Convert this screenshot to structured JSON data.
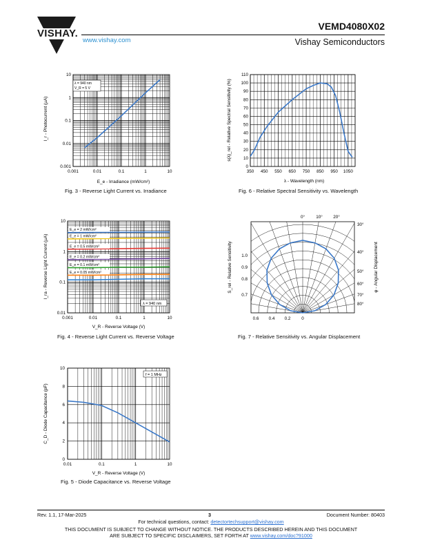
{
  "header": {
    "brand": "VISHAY.",
    "url": "www.vishay.com",
    "part_number": "VEMD4080X02",
    "company": "Vishay Semiconductors"
  },
  "figures": {
    "fig3": {
      "caption": "Fig. 3 - Reverse Light Current vs. Irradiance",
      "ylabel": "I_r - Photocurrent (µA)",
      "xlabel": "E_e - Irradiance (mW/cm²)",
      "yticks": [
        "10",
        "1",
        "0.1",
        "0.01",
        "0.001"
      ],
      "xticks": [
        "0.001",
        "0.01",
        "0.1",
        "1",
        "10"
      ],
      "annotation_lines": [
        "λ = 940 nm",
        "V_R = 5 V"
      ]
    },
    "fig4": {
      "caption": "Fig. 4 -  Reverse Light Current vs. Reverse Voltage",
      "ylabel": "I_ra - Reverse Light Current (µA)",
      "xlabel": "V_R - Reverse Voltage (V)",
      "yticks": [
        "10",
        "1",
        "0.1",
        "0.01"
      ],
      "xticks": [
        "0.001",
        "0.01",
        "0.1",
        "1",
        "10"
      ],
      "annotation": "λ = 940 nm"
    },
    "fig5": {
      "caption": "Fig. 5 - Diode Capacitance vs. Reverse Voltage",
      "ylabel": "C_D - Diode Capacitance (pF)",
      "xlabel": "V_R - Reverse Voltage (V)",
      "yticks": [
        "10",
        "8",
        "6",
        "4",
        "2",
        "0"
      ],
      "xticks": [
        "0.01",
        "0.1",
        "1",
        "10"
      ],
      "annotation": "f = 1 MHz"
    },
    "fig6": {
      "caption": "Fig. 6 - Relative Spectral Sensitivity vs. Wavelength",
      "ylabel": "s(λ)_rel - Relative Spectral Sensitivity (%)",
      "xlabel": "λ - Wavelength (nm)",
      "yticks": [
        "110",
        "100",
        "90",
        "80",
        "70",
        "60",
        "50",
        "40",
        "30",
        "20",
        "10",
        "0"
      ],
      "xticks": [
        "350",
        "450",
        "550",
        "650",
        "750",
        "850",
        "950",
        "1050"
      ]
    },
    "fig7": {
      "caption": "Fig. 7 - Relative Sensitivity vs. Angular Displacement",
      "ylabel": "S_rel - Relative Sensitivity",
      "right_label": "φ - Angular Displacement",
      "top_angles": [
        "0°",
        "10°",
        "20°"
      ],
      "right_angles": [
        "30°",
        "40°",
        "50°",
        "60°",
        "70°",
        "80°"
      ],
      "left_ticks": [
        "1.0",
        "0.9",
        "0.8",
        "0.7"
      ],
      "bottom_ticks": [
        "0.6",
        "0.4",
        "0.2",
        "0"
      ]
    }
  },
  "chart_data": [
    {
      "type": "line",
      "title": "Fig. 3 - Reverse Light Current vs. Irradiance",
      "xlabel": "E_e - Irradiance (mW/cm²)",
      "ylabel": "I_r - Photocurrent (µA)",
      "xscale": "log",
      "yscale": "log",
      "xlim": [
        0.001,
        10
      ],
      "ylim": [
        0.001,
        10
      ],
      "grid": true,
      "x": [
        0.003,
        0.01,
        0.1,
        1,
        4
      ],
      "y": [
        0.0065,
        0.018,
        0.16,
        1.6,
        6
      ]
    },
    {
      "type": "line",
      "title": "Fig. 4 -  Reverse Light Current vs. Reverse Voltage",
      "xlabel": "V_R - Reverse Voltage (V)",
      "ylabel": "I_ra - Reverse Light Current (µA)",
      "xscale": "log",
      "yscale": "log",
      "xlim": [
        0.001,
        10
      ],
      "ylim": [
        0.01,
        10
      ],
      "grid": true,
      "x": [
        0.001,
        0.01,
        0.1,
        1,
        10
      ],
      "series": [
        {
          "name": "E_e = 2 mW/cm²",
          "color": "#3a78c8",
          "values": [
            4.2,
            4.25,
            4.3,
            4.35,
            4.4
          ]
        },
        {
          "name": "E_e = 1 mW/cm²",
          "color": "#f0c419",
          "values": [
            2.6,
            2.65,
            2.7,
            2.75,
            2.8
          ]
        },
        {
          "name": "E_e = 0.5 mW/cm²",
          "color": "#e53935",
          "values": [
            1.2,
            1.22,
            1.25,
            1.28,
            1.3
          ]
        },
        {
          "name": "E_e = 0.2 mW/cm²",
          "color": "#6a3d9a",
          "values": [
            0.55,
            0.56,
            0.57,
            0.58,
            0.6
          ]
        },
        {
          "name": "E_e = 0.1 mW/cm²",
          "color": "#2ca02c",
          "values": [
            0.3,
            0.3,
            0.31,
            0.31,
            0.32
          ]
        },
        {
          "name": "E_e = 0.05 mW/cm²",
          "color": "#ff7f0e",
          "values": [
            0.17,
            0.17,
            0.175,
            0.18,
            0.18
          ]
        },
        {
          "name": "",
          "color": "#2a7fd4",
          "values": [
            0.12,
            0.12,
            0.125,
            0.13,
            0.13
          ]
        }
      ]
    },
    {
      "type": "line",
      "title": "Fig. 5 - Diode Capacitance vs. Reverse Voltage",
      "xlabel": "V_R - Reverse Voltage (V)",
      "ylabel": "C_D - Diode Capacitance (pF)",
      "xscale": "log",
      "xlim": [
        0.01,
        10
      ],
      "ylim": [
        0,
        10
      ],
      "grid": true,
      "x": [
        0.01,
        0.03,
        0.1,
        0.3,
        1,
        3,
        10
      ],
      "y": [
        6.4,
        6.25,
        5.9,
        5.1,
        4.0,
        3.0,
        1.9
      ]
    },
    {
      "type": "line",
      "title": "Fig. 6 - Relative Spectral Sensitivity vs. Wavelength",
      "xlabel": "λ - Wavelength (nm)",
      "ylabel": "s(λ)_rel - Relative Spectral Sensitivity (%)",
      "xlim": [
        350,
        1100
      ],
      "ylim": [
        0,
        110
      ],
      "grid": true,
      "x": [
        350,
        380,
        420,
        470,
        550,
        650,
        750,
        800,
        850,
        900,
        930,
        960,
        990,
        1020,
        1050,
        1080
      ],
      "y": [
        12,
        20,
        35,
        48,
        65,
        80,
        93,
        97,
        100,
        99,
        95,
        85,
        65,
        40,
        18,
        11
      ]
    },
    {
      "type": "line",
      "title": "Fig. 7 - Relative Sensitivity vs. Angular Displacement",
      "ylabel": "S_rel - Relative Sensitivity",
      "projection": "polar",
      "x": [
        0,
        10,
        20,
        30,
        40,
        50,
        60,
        70,
        80,
        90
      ],
      "y": [
        1.0,
        0.98,
        0.94,
        0.87,
        0.77,
        0.64,
        0.5,
        0.34,
        0.17,
        0.0
      ]
    }
  ],
  "footer": {
    "revision": "Rev. 1.1, 17-Mar-2025",
    "page": "3",
    "doc_number": "Document Number: 80403",
    "tech_questions_prefix": "For technical questions, contact: ",
    "tech_email": "detectortechsupport@vishay.com",
    "disclaimer_line1": "THIS DOCUMENT IS SUBJECT TO CHANGE WITHOUT NOTICE. THE PRODUCTS DESCRIBED HEREIN AND THIS DOCUMENT",
    "disclaimer_line2_prefix": "ARE SUBJECT TO SPECIFIC DISCLAIMERS, SET FORTH AT ",
    "disclaimer_link": "www.vishay.com/doc?91000"
  }
}
